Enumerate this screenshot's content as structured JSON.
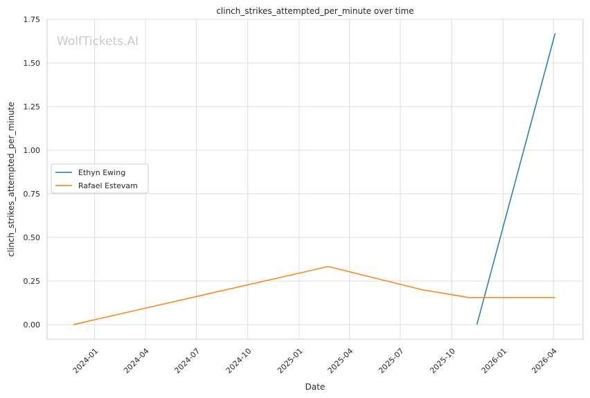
{
  "watermark": "WolfTickets.AI",
  "chart_data": {
    "type": "line",
    "title": "clinch_strikes_attempted_per_minute over time",
    "xlabel": "Date",
    "ylabel": "clinch_strikes_attempted_per_minute",
    "x_range": [
      "2023-10-08",
      "2026-05-24"
    ],
    "ylim": [
      -0.0835,
      1.75
    ],
    "x_ticks": [
      "2024-01",
      "2024-04",
      "2024-07",
      "2024-10",
      "2025-01",
      "2025-04",
      "2025-07",
      "2025-10",
      "2026-01",
      "2026-04"
    ],
    "y_ticks": [
      "0.00",
      "0.25",
      "0.50",
      "0.75",
      "1.00",
      "1.25",
      "1.50",
      "1.75"
    ],
    "grid": true,
    "legend_position": "center-left",
    "series": [
      {
        "name": "Ethyn Ewing",
        "color": "#1f77b4",
        "x": [
          "2025-11-15",
          "2026-04-04"
        ],
        "y": [
          0.0,
          1.67
        ]
      },
      {
        "name": "Rafael Estevam",
        "color": "#ff7f0e",
        "x": [
          "2023-11-24",
          "2025-02-22",
          "2025-08-09",
          "2025-11-01",
          "2026-04-04"
        ],
        "y": [
          0.0,
          0.333,
          0.2,
          0.155,
          0.155
        ]
      }
    ]
  }
}
